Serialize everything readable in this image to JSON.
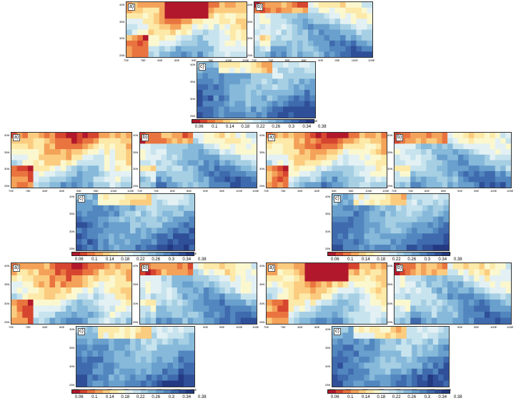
{
  "panel_labels": [
    "a)",
    "b)",
    "c)"
  ],
  "y_ticks": [
    "40N",
    "35N",
    "30N",
    "25N"
  ],
  "x_ticks": [
    "70E",
    "75E",
    "80E",
    "85E",
    "90E",
    "95E",
    "100E",
    "105E"
  ],
  "colorbar": {
    "labels": [
      "0.06",
      "0.1",
      "0.14",
      "0.18",
      "0.22",
      "0.26",
      "0.3",
      "0.34",
      "0.38"
    ],
    "colors": [
      "#b2182b",
      "#d6452f",
      "#e9743f",
      "#f4a259",
      "#fbcc7f",
      "#fde9a8",
      "#fbf8cf",
      "#e3f1f4",
      "#c7e3ee",
      "#a6cfe4",
      "#86b9da",
      "#6aa0cd",
      "#5286bf",
      "#3f6bae",
      "#2f4f98",
      "#233982"
    ]
  },
  "groups": [
    {
      "id": "g1",
      "field": "low-north"
    },
    {
      "id": "g2",
      "field": "mid-north"
    },
    {
      "id": "g3",
      "field": "mid-north"
    },
    {
      "id": "g4",
      "field": "mid-north"
    },
    {
      "id": "g5",
      "field": "low-north"
    }
  ]
}
